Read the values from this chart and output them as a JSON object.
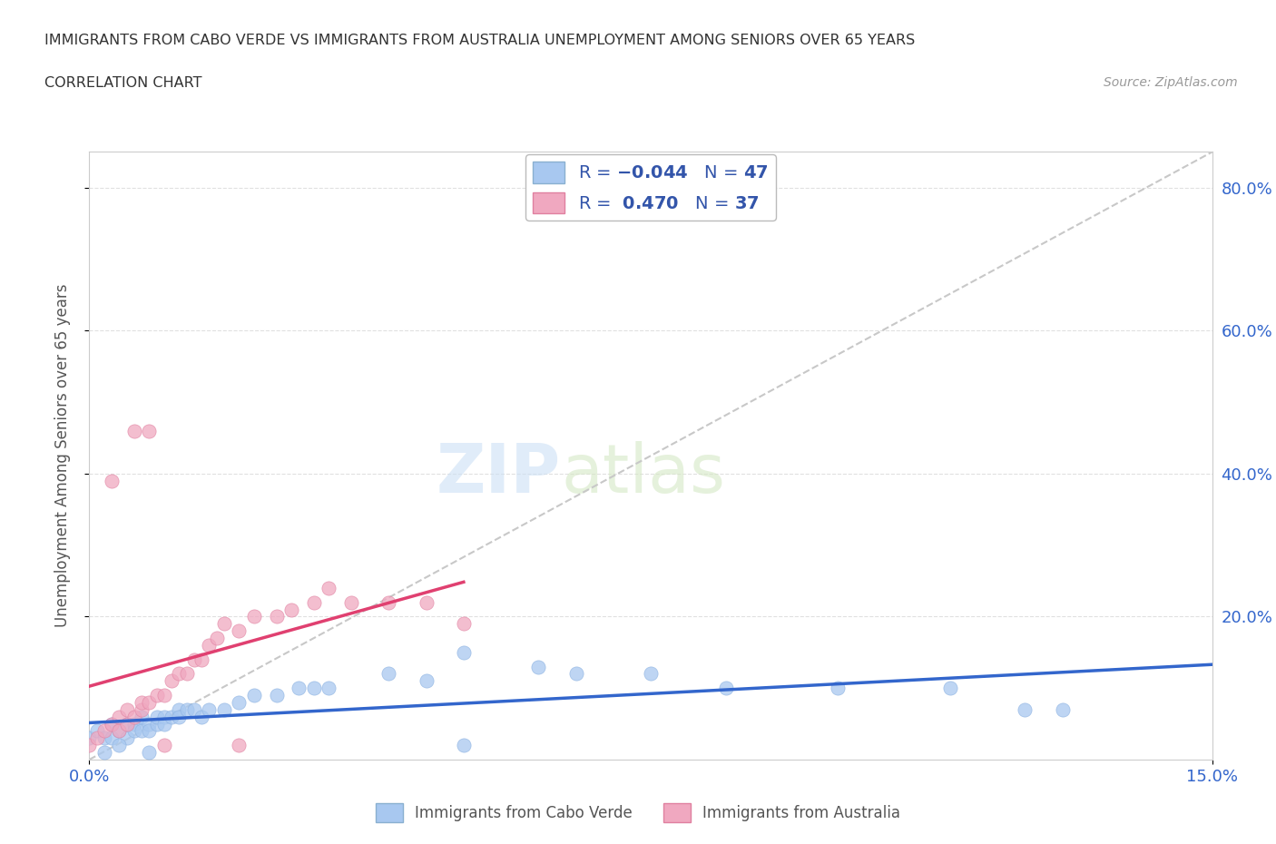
{
  "title_line1": "IMMIGRANTS FROM CABO VERDE VS IMMIGRANTS FROM AUSTRALIA UNEMPLOYMENT AMONG SENIORS OVER 65 YEARS",
  "title_line2": "CORRELATION CHART",
  "source_text": "Source: ZipAtlas.com",
  "ylabel": "Unemployment Among Seniors over 65 years",
  "xlim": [
    0.0,
    0.15
  ],
  "ylim": [
    0.0,
    0.85
  ],
  "x_ticks": [
    0.0,
    0.15
  ],
  "x_tick_labels": [
    "0.0%",
    "15.0%"
  ],
  "y_ticks": [
    0.2,
    0.4,
    0.6,
    0.8
  ],
  "y_tick_labels": [
    "20.0%",
    "40.0%",
    "60.0%",
    "80.0%"
  ],
  "watermark_zip": "ZIP",
  "watermark_atlas": "atlas",
  "cabo_verde_color": "#a8c8f0",
  "australia_color": "#f0a8c0",
  "cabo_verde_line_color": "#3366cc",
  "australia_line_color": "#e04070",
  "trendline_color": "#c8c8c8",
  "cabo_verde_scatter_x": [
    0.0,
    0.001,
    0.002,
    0.003,
    0.003,
    0.004,
    0.005,
    0.005,
    0.006,
    0.006,
    0.007,
    0.007,
    0.008,
    0.008,
    0.009,
    0.009,
    0.01,
    0.01,
    0.011,
    0.012,
    0.012,
    0.013,
    0.014,
    0.015,
    0.016,
    0.018,
    0.02,
    0.022,
    0.025,
    0.028,
    0.03,
    0.032,
    0.04,
    0.045,
    0.05,
    0.06,
    0.065,
    0.075,
    0.085,
    0.1,
    0.115,
    0.125,
    0.13,
    0.002,
    0.004,
    0.008,
    0.05
  ],
  "cabo_verde_scatter_y": [
    0.03,
    0.04,
    0.03,
    0.05,
    0.03,
    0.04,
    0.05,
    0.03,
    0.05,
    0.04,
    0.04,
    0.06,
    0.05,
    0.04,
    0.05,
    0.06,
    0.06,
    0.05,
    0.06,
    0.07,
    0.06,
    0.07,
    0.07,
    0.06,
    0.07,
    0.07,
    0.08,
    0.09,
    0.09,
    0.1,
    0.1,
    0.1,
    0.12,
    0.11,
    0.15,
    0.13,
    0.12,
    0.12,
    0.1,
    0.1,
    0.1,
    0.07,
    0.07,
    0.01,
    0.02,
    0.01,
    0.02
  ],
  "australia_scatter_x": [
    0.0,
    0.001,
    0.002,
    0.003,
    0.004,
    0.004,
    0.005,
    0.005,
    0.006,
    0.007,
    0.007,
    0.008,
    0.008,
    0.009,
    0.01,
    0.011,
    0.012,
    0.013,
    0.014,
    0.015,
    0.016,
    0.017,
    0.018,
    0.02,
    0.022,
    0.025,
    0.027,
    0.03,
    0.032,
    0.035,
    0.04,
    0.045,
    0.05,
    0.003,
    0.006,
    0.01,
    0.02
  ],
  "australia_scatter_y": [
    0.02,
    0.03,
    0.04,
    0.05,
    0.04,
    0.06,
    0.05,
    0.07,
    0.06,
    0.07,
    0.08,
    0.08,
    0.46,
    0.09,
    0.09,
    0.11,
    0.12,
    0.12,
    0.14,
    0.14,
    0.16,
    0.17,
    0.19,
    0.18,
    0.2,
    0.2,
    0.21,
    0.22,
    0.24,
    0.22,
    0.22,
    0.22,
    0.19,
    0.39,
    0.46,
    0.02,
    0.02
  ],
  "background_color": "#ffffff",
  "grid_color": "#e0e0e0"
}
